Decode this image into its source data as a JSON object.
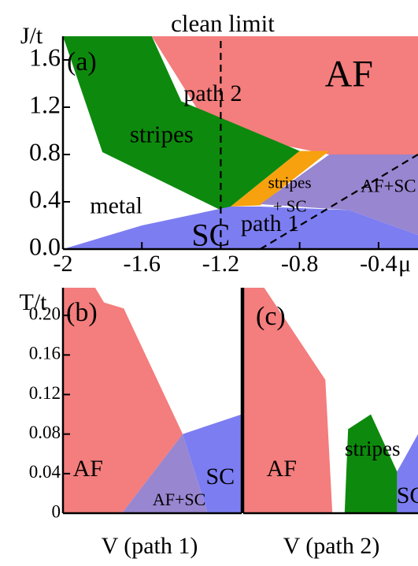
{
  "top_title": "clean limit",
  "colors": {
    "af": "#f47d7d",
    "stripes": "#0d8a0d",
    "sc": "#7d7df2",
    "af_sc": "#9886d0",
    "stripes_sc": "#f7a10e",
    "axes": "#000000"
  },
  "chart_data": [
    {
      "type": "area",
      "panel_label": "(a)",
      "xlabel": "μ",
      "ylabel": "J/t",
      "xlim": [
        -2.0,
        -0.2
      ],
      "ylim": [
        0.0,
        1.8
      ],
      "x_ticks": [
        "-2",
        "-1.6",
        "-1.2",
        "-0.8",
        "-0.4"
      ],
      "x_tick_values": [
        -2.0,
        -1.6,
        -1.2,
        -0.8,
        -0.4
      ],
      "y_ticks": [
        "0.0",
        "0.4",
        "0.8",
        "1.2",
        "1.6"
      ],
      "y_tick_values": [
        0.0,
        0.4,
        0.8,
        1.2,
        1.6
      ],
      "regions": [
        {
          "label": "AF",
          "color_key": "af",
          "polygon": [
            [
              -1.55,
              1.8
            ],
            [
              -0.2,
              1.8
            ],
            [
              -0.2,
              0.8
            ],
            [
              -0.65,
              0.8
            ],
            [
              -1.25,
              1.0
            ],
            [
              -1.55,
              1.8
            ]
          ]
        },
        {
          "label": "stripes",
          "color_key": "stripes",
          "polygon": [
            [
              -2.0,
              1.8
            ],
            [
              -1.55,
              1.8
            ],
            [
              -1.4,
              1.25
            ],
            [
              -0.8,
              0.83
            ],
            [
              -1.15,
              0.36
            ],
            [
              -1.2,
              0.33
            ],
            [
              -1.8,
              0.82
            ]
          ]
        },
        {
          "label": "stripes\n+ SC",
          "color_key": "stripes_sc",
          "polygon": [
            [
              -0.8,
              0.83
            ],
            [
              -0.65,
              0.83
            ],
            [
              -1.0,
              0.37
            ],
            [
              -1.15,
              0.36
            ]
          ]
        },
        {
          "label": "AF+SC",
          "color_key": "af_sc",
          "polygon": [
            [
              -0.65,
              0.8
            ],
            [
              -0.2,
              0.8
            ],
            [
              -0.2,
              0.12
            ],
            [
              -0.55,
              0.33
            ],
            [
              -1.0,
              0.38
            ]
          ]
        },
        {
          "label": "SC",
          "color_key": "sc",
          "polygon": [
            [
              -1.98,
              0.0
            ],
            [
              -0.2,
              0.0
            ],
            [
              -0.2,
              0.12
            ],
            [
              -0.55,
              0.33
            ],
            [
              -1.0,
              0.36
            ],
            [
              -1.15,
              0.36
            ],
            [
              -1.6,
              0.2
            ],
            [
              -1.98,
              0.01
            ]
          ]
        }
      ],
      "region_labels": [
        {
          "text": "AF",
          "x": -0.55,
          "y": 1.45
        },
        {
          "text": "stripes",
          "x": -1.5,
          "y": 0.95
        },
        {
          "text": "stripes",
          "x": -0.85,
          "y": 0.55
        },
        {
          "text": "+ SC",
          "x": -0.85,
          "y": 0.35
        },
        {
          "text": "AF+SC",
          "x": -0.35,
          "y": 0.52
        },
        {
          "text": "metal",
          "x": -1.73,
          "y": 0.35
        },
        {
          "text": "SC",
          "x": -1.25,
          "y": 0.09
        },
        {
          "text": "path 2",
          "x": -1.24,
          "y": 1.3
        },
        {
          "text": "path 1",
          "x": -0.95,
          "y": 0.2
        }
      ],
      "lines": [
        {
          "name": "path 2",
          "points": [
            [
              -1.2,
              0.0
            ],
            [
              -1.2,
              1.8
            ]
          ],
          "style": "dashed"
        },
        {
          "name": "path 1",
          "points": [
            [
              -1.0,
              0.0
            ],
            [
              -0.2,
              0.8
            ]
          ],
          "style": "dashed"
        }
      ]
    },
    {
      "type": "area",
      "panel_label": "(b)",
      "xlabel": "V (path 1)",
      "ylabel": "T/t",
      "xlim": [
        0,
        1
      ],
      "ylim": [
        0,
        0.228
      ],
      "y_ticks": [
        "0",
        "0.04",
        "0.08",
        "0.12",
        "0.16",
        "0.20"
      ],
      "y_tick_values": [
        0,
        0.04,
        0.08,
        0.12,
        0.16,
        0.2
      ],
      "regions": [
        {
          "label": "AF",
          "color_key": "af",
          "polygon": [
            [
              0,
              0.228
            ],
            [
              0,
              0
            ],
            [
              0.33,
              0
            ],
            [
              0.67,
              0.08
            ],
            [
              0.34,
              0.207
            ],
            [
              0.23,
              0.213
            ],
            [
              0.18,
              0.228
            ]
          ]
        },
        {
          "label": "AF+SC",
          "color_key": "af_sc",
          "polygon": [
            [
              0.33,
              0
            ],
            [
              0.81,
              0
            ],
            [
              0.67,
              0.08
            ]
          ]
        },
        {
          "label": "SC",
          "color_key": "sc",
          "polygon": [
            [
              0.67,
              0.08
            ],
            [
              1.0,
              0.1
            ],
            [
              1.0,
              0
            ],
            [
              0.81,
              0
            ]
          ]
        }
      ],
      "region_labels": [
        {
          "text": "AF",
          "x": 0.14,
          "y": 0.043
        },
        {
          "text": "SC",
          "x": 0.88,
          "y": 0.035
        },
        {
          "text": "AF+SC",
          "x": 0.65,
          "y": 0.012
        }
      ]
    },
    {
      "type": "area",
      "panel_label": "(c)",
      "xlabel": "V (path 2)",
      "ylabel": "T/t",
      "xlim": [
        0,
        1
      ],
      "ylim": [
        0,
        0.228
      ],
      "regions": [
        {
          "label": "AF",
          "color_key": "af",
          "polygon": [
            [
              0,
              0.228
            ],
            [
              0,
              0
            ],
            [
              0.51,
              0
            ],
            [
              0.47,
              0.135
            ],
            [
              0.12,
              0.228
            ]
          ]
        },
        {
          "label": "stripes",
          "color_key": "stripes",
          "polygon": [
            [
              0.58,
              0
            ],
            [
              0.88,
              0
            ],
            [
              0.88,
              0.042
            ],
            [
              0.73,
              0.1
            ],
            [
              0.6,
              0.085
            ]
          ]
        },
        {
          "label": "SC",
          "color_key": "sc",
          "polygon": [
            [
              0.88,
              0
            ],
            [
              1.0,
              0
            ],
            [
              1.0,
              0.08
            ],
            [
              0.88,
              0.042
            ]
          ]
        }
      ],
      "region_labels": [
        {
          "text": "AF",
          "x": 0.22,
          "y": 0.043
        },
        {
          "text": "stripes",
          "x": 0.74,
          "y": 0.063
        },
        {
          "text": "SC",
          "x": 0.96,
          "y": 0.016
        }
      ]
    }
  ]
}
